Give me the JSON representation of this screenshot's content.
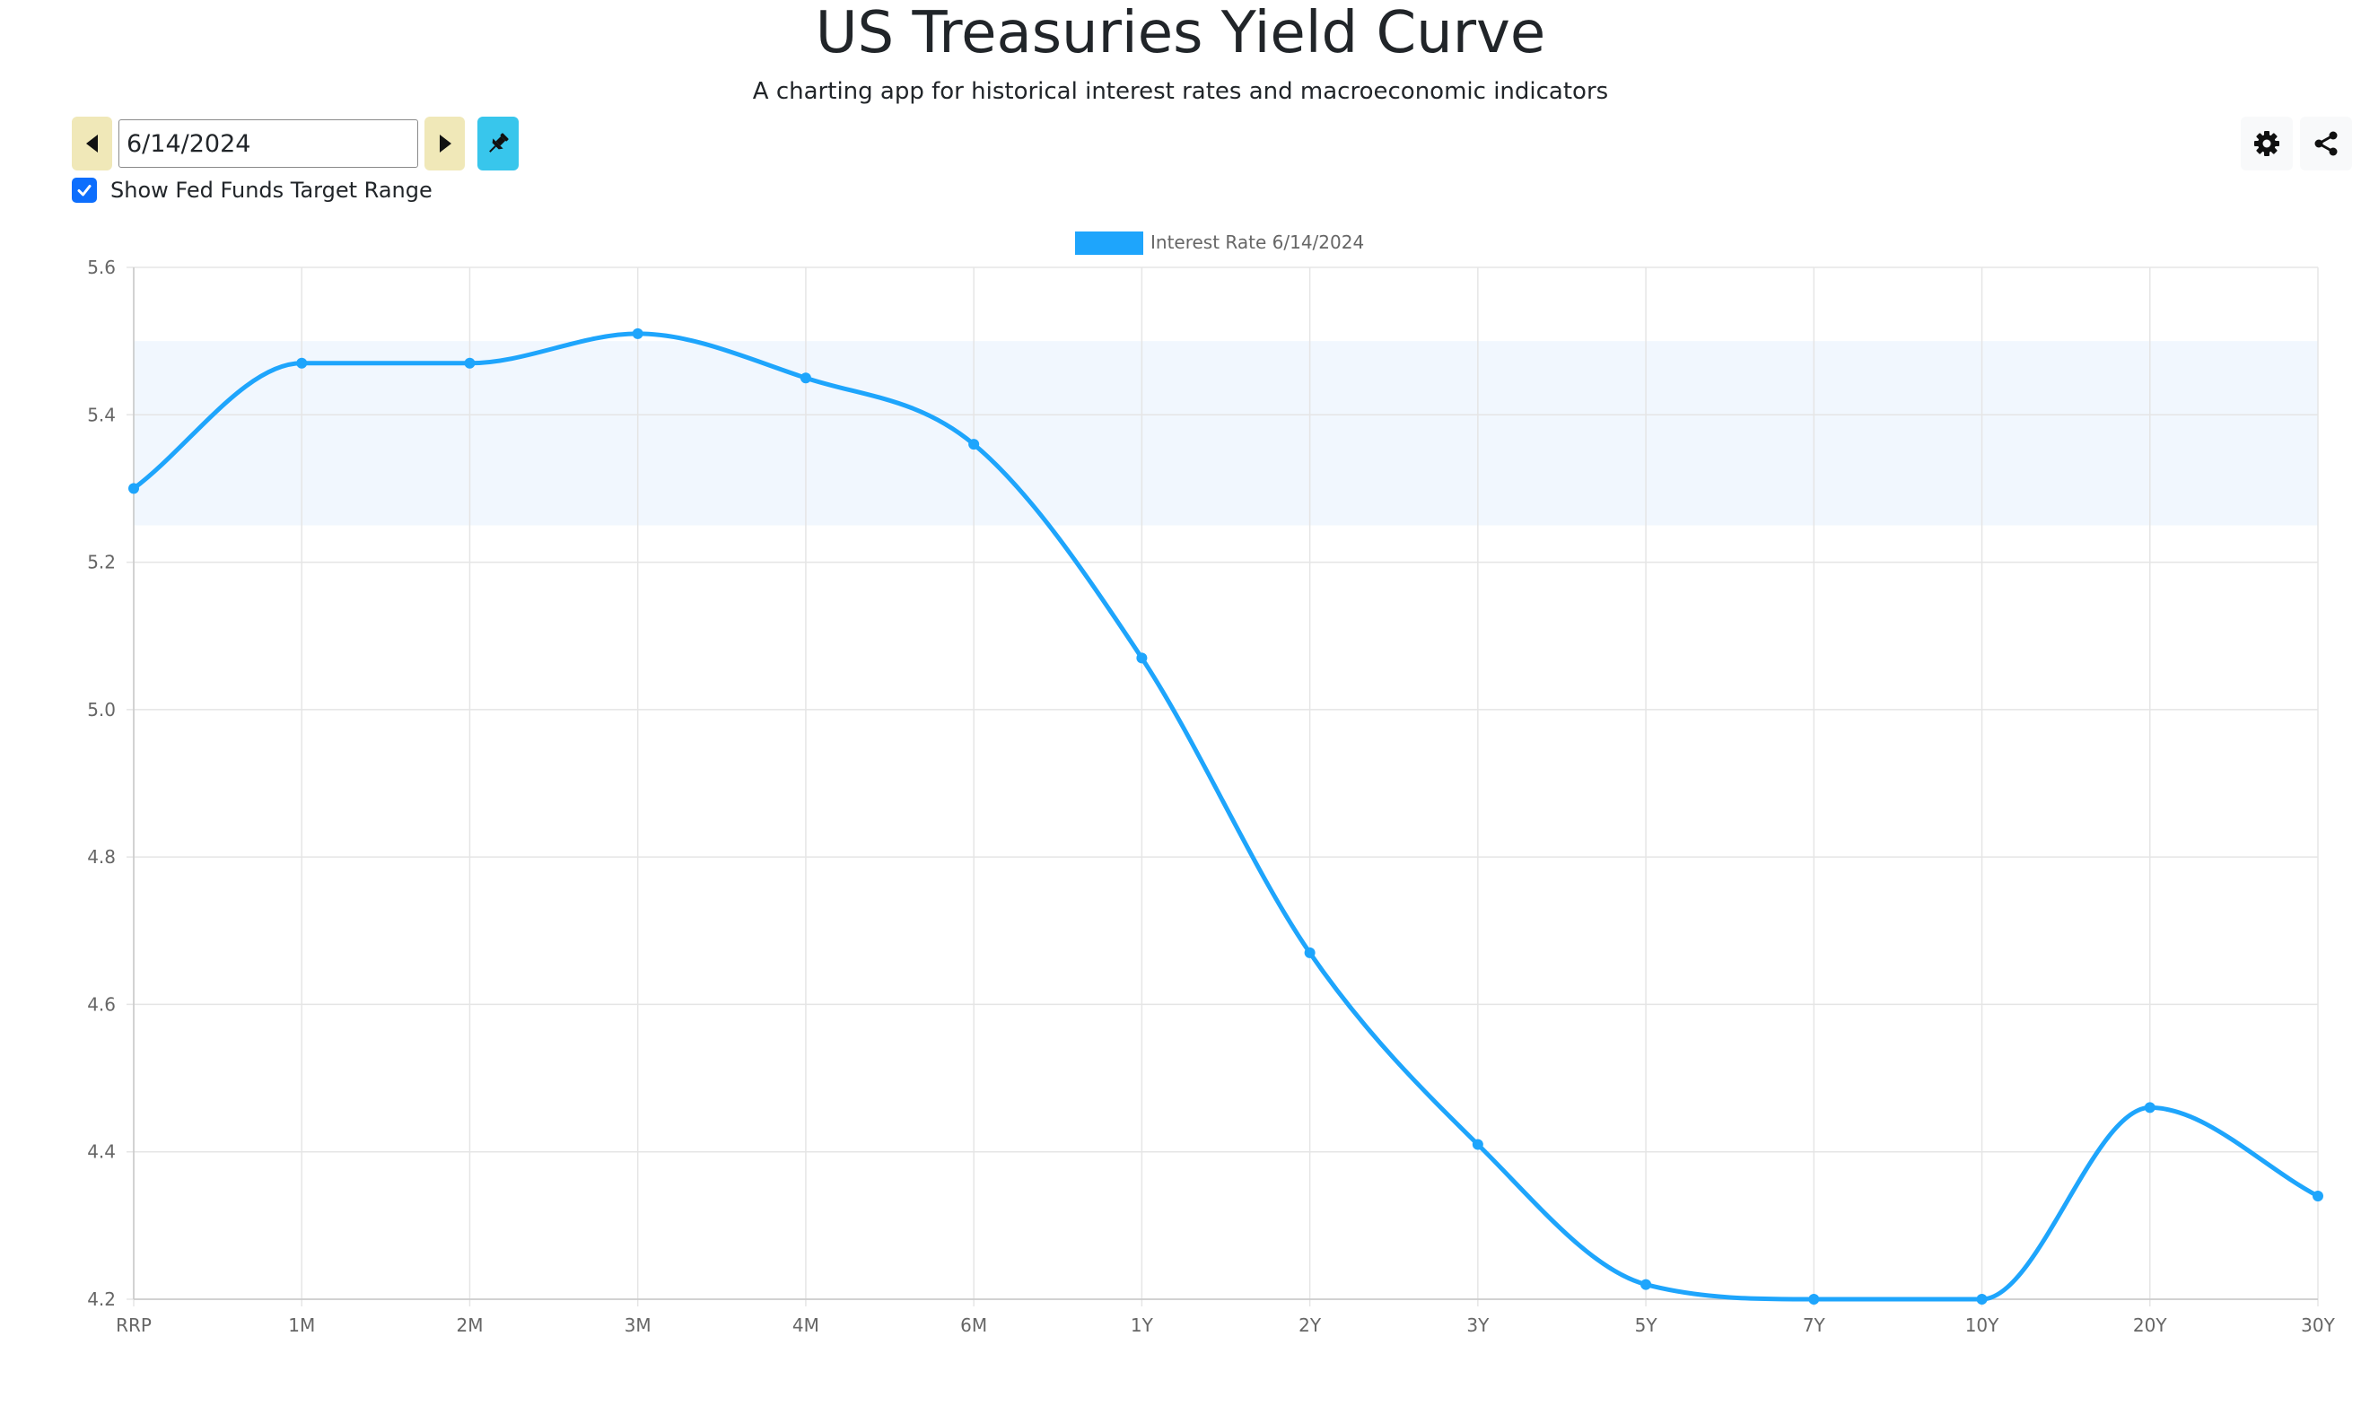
{
  "header": {
    "title": "US Treasuries Yield Curve",
    "subtitle": "A charting app for historical interest rates and macroeconomic indicators"
  },
  "controls": {
    "date_value": "6/14/2024",
    "show_fed_funds_label": "Show Fed Funds Target Range",
    "show_fed_funds_checked": true,
    "icons": {
      "prev": "caret-left-icon",
      "next": "caret-right-icon",
      "pin": "pin-icon",
      "settings": "gear-icon",
      "share": "share-icon"
    }
  },
  "colors": {
    "series": "#1ea5fc",
    "fed_band": "#f1f7fe",
    "nav_button": "#f0e8b8",
    "pin_button": "#38c6ec",
    "checkbox": "#0d6efd"
  },
  "chart_data": {
    "type": "line",
    "categories": [
      "RRP",
      "1M",
      "2M",
      "3M",
      "4M",
      "6M",
      "1Y",
      "2Y",
      "3Y",
      "5Y",
      "7Y",
      "10Y",
      "20Y",
      "30Y"
    ],
    "series": [
      {
        "name": "Interest Rate 6/14/2024",
        "values": [
          5.3,
          5.47,
          5.47,
          5.51,
          5.45,
          5.36,
          5.07,
          4.67,
          4.41,
          4.22,
          4.2,
          4.2,
          4.46,
          4.34
        ]
      }
    ],
    "ylim": [
      4.2,
      5.6
    ],
    "yticks": [
      "4.2",
      "4.4",
      "4.6",
      "4.8",
      "5.0",
      "5.2",
      "5.4",
      "5.6"
    ],
    "fed_funds_target_range": [
      5.25,
      5.5
    ],
    "grid": true,
    "legend_position": "top"
  }
}
